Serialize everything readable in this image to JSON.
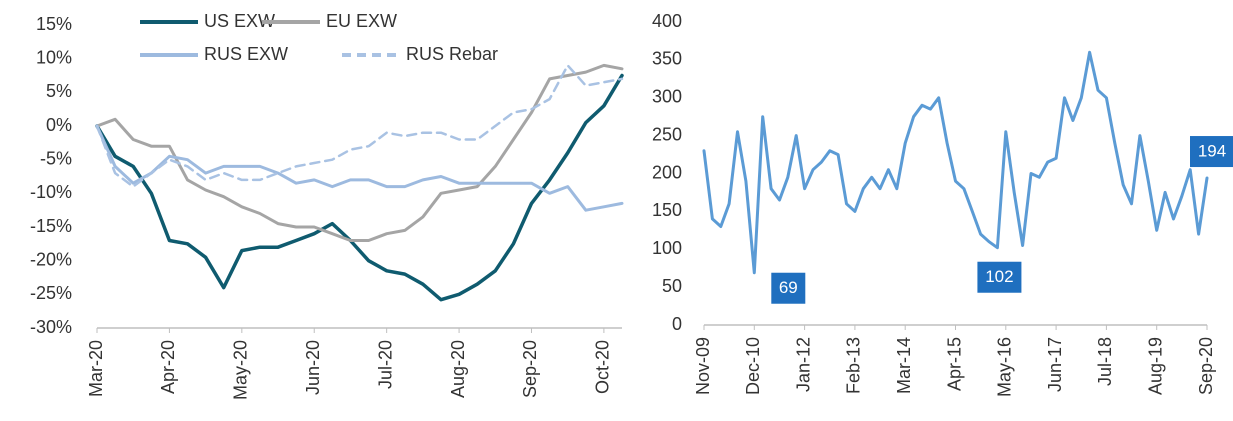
{
  "chart_data": [
    {
      "type": "line",
      "categories": [
        "Mar-20",
        null,
        null,
        null,
        "Apr-20",
        null,
        null,
        null,
        "May-20",
        null,
        null,
        null,
        "Jun-20",
        null,
        null,
        null,
        "Jul-20",
        null,
        null,
        null,
        "Aug-20",
        null,
        null,
        null,
        "Sep-20",
        null,
        null,
        null,
        "Oct-20",
        null
      ],
      "series": [
        {
          "name": "US EXW",
          "color": "#0f5b6f",
          "values": [
            0,
            -4.5,
            -6,
            -10,
            -17,
            -17.5,
            -19.5,
            -24,
            -18.5,
            -18,
            -18,
            -17,
            -16,
            -14.5,
            -17,
            -20,
            -21.5,
            -22,
            -23.5,
            -25.8,
            -25,
            -23.5,
            -21.5,
            -17.5,
            -11.5,
            -8,
            -4,
            0.5,
            3,
            7.5
          ]
        },
        {
          "name": "EU EXW",
          "color": "#a5a5a5",
          "values": [
            0,
            1,
            -2,
            -3,
            -3,
            -8,
            -9.5,
            -10.5,
            -12,
            -13,
            -14.5,
            -15,
            -15,
            -16,
            -17,
            -17,
            -16,
            -15.5,
            -13.5,
            -10,
            -9.5,
            -9,
            -6,
            -2,
            2,
            7,
            7.5,
            8,
            9,
            8.5
          ]
        },
        {
          "name": "RUS EXW",
          "color": "#9dbadf",
          "values": [
            0,
            -6,
            -8.5,
            -7,
            -4.5,
            -5,
            -7,
            -6,
            -6,
            -6,
            -7,
            -8.5,
            -8,
            -9,
            -8,
            -8,
            -9,
            -9,
            -8,
            -7.5,
            -8.5,
            -8.5,
            -8.5,
            -8.5,
            -8.5,
            -10,
            -9,
            -12.5,
            -12,
            -11.5
          ]
        },
        {
          "name": "RUS Rebar",
          "color": "#a9c2e3",
          "dash": true,
          "values": [
            0,
            -7,
            -9,
            -7,
            -5,
            -6,
            -8,
            -7,
            -8,
            -8,
            -7,
            -6,
            -5.5,
            -5,
            -3.5,
            -3,
            -1,
            -1.5,
            -1,
            -1,
            -2,
            -2,
            0,
            2,
            2.5,
            4,
            9,
            6,
            6.5,
            7
          ]
        }
      ],
      "ylim": [
        -30,
        15
      ],
      "yticks": [
        {
          "value": 15,
          "label": "15%"
        },
        {
          "value": 10,
          "label": "10%"
        },
        {
          "value": 5,
          "label": "5%"
        },
        {
          "value": 0,
          "label": "0%"
        },
        {
          "value": -5,
          "label": "-5%"
        },
        {
          "value": -10,
          "label": "-10%"
        },
        {
          "value": -15,
          "label": "-15%"
        },
        {
          "value": -20,
          "label": "-20%"
        },
        {
          "value": -25,
          "label": "-25%"
        },
        {
          "value": -30,
          "label": "-30%"
        }
      ],
      "legend": "top"
    },
    {
      "type": "line",
      "categories": [
        "Nov-09",
        null,
        null,
        null,
        null,
        null,
        "Dec-10",
        null,
        null,
        null,
        null,
        null,
        "Jan-12",
        null,
        null,
        null,
        null,
        null,
        "Feb-13",
        null,
        null,
        null,
        null,
        null,
        "Mar-14",
        null,
        null,
        null,
        null,
        null,
        "Apr-15",
        null,
        null,
        null,
        null,
        null,
        "May-16",
        null,
        null,
        null,
        null,
        null,
        "Jun-17",
        null,
        null,
        null,
        null,
        null,
        "Jul-18",
        null,
        null,
        null,
        null,
        null,
        "Aug-19",
        null,
        null,
        null,
        null,
        null,
        "Sep-20"
      ],
      "color": "#5b9bd5",
      "values": [
        230,
        140,
        130,
        160,
        255,
        190,
        69,
        275,
        180,
        165,
        195,
        250,
        180,
        205,
        215,
        230,
        225,
        160,
        150,
        180,
        195,
        180,
        205,
        180,
        240,
        275,
        290,
        285,
        300,
        240,
        190,
        180,
        150,
        120,
        110,
        102,
        255,
        175,
        105,
        200,
        195,
        215,
        220,
        300,
        270,
        300,
        360,
        310,
        300,
        240,
        185,
        160,
        250,
        190,
        125,
        175,
        140,
        170,
        205,
        120,
        194
      ],
      "value_labels": [
        null,
        null,
        null,
        null,
        null,
        null,
        "69",
        null,
        null,
        null,
        null,
        null,
        null,
        null,
        null,
        null,
        null,
        null,
        null,
        null,
        null,
        null,
        null,
        null,
        null,
        null,
        null,
        null,
        null,
        null,
        null,
        null,
        null,
        null,
        null,
        "102",
        null,
        null,
        null,
        null,
        null,
        null,
        null,
        null,
        null,
        null,
        null,
        null,
        null,
        null,
        null,
        null,
        null,
        null,
        null,
        null,
        null,
        null,
        null,
        null,
        "194"
      ],
      "value_label_color": "#1f6fbf",
      "ylim": [
        0,
        400
      ],
      "yticks": [
        0,
        50,
        100,
        150,
        200,
        250,
        300,
        350,
        400
      ]
    }
  ]
}
